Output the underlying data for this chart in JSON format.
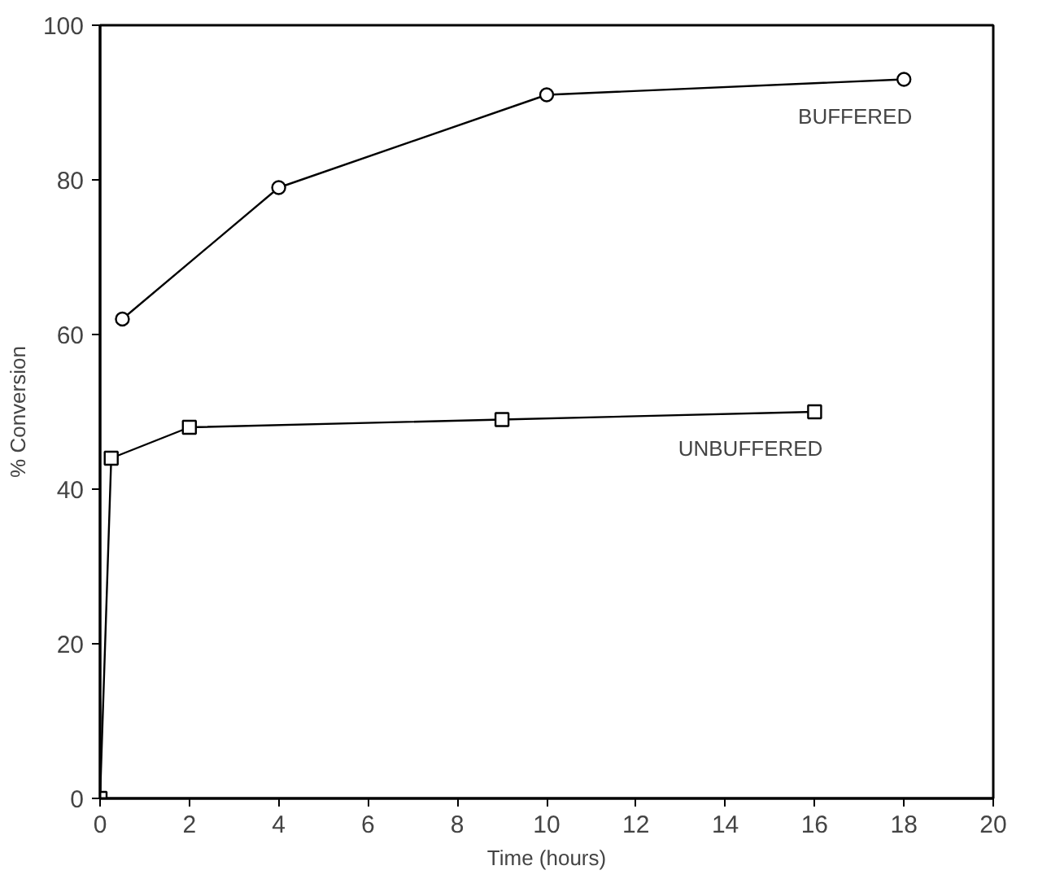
{
  "chart_data": {
    "type": "line",
    "xlabel": "Time (hours)",
    "ylabel": "% Conversion",
    "xlim": [
      0,
      20
    ],
    "ylim": [
      0,
      100
    ],
    "xticks": [
      0,
      2,
      4,
      6,
      8,
      10,
      12,
      14,
      16,
      18,
      20
    ],
    "yticks": [
      0,
      20,
      40,
      60,
      80,
      100
    ],
    "grid": false,
    "legend": false,
    "series": [
      {
        "name": "BUFFERED",
        "color": "#000000",
        "marker": "circle",
        "x": [
          0.5,
          4,
          10,
          18
        ],
        "values": [
          62,
          79,
          91,
          93
        ]
      },
      {
        "name": "UNBUFFERED",
        "color": "#000000",
        "marker": "square",
        "x": [
          0,
          0.25,
          2,
          9,
          16
        ],
        "values": [
          0,
          44,
          48,
          49,
          50
        ]
      }
    ]
  }
}
